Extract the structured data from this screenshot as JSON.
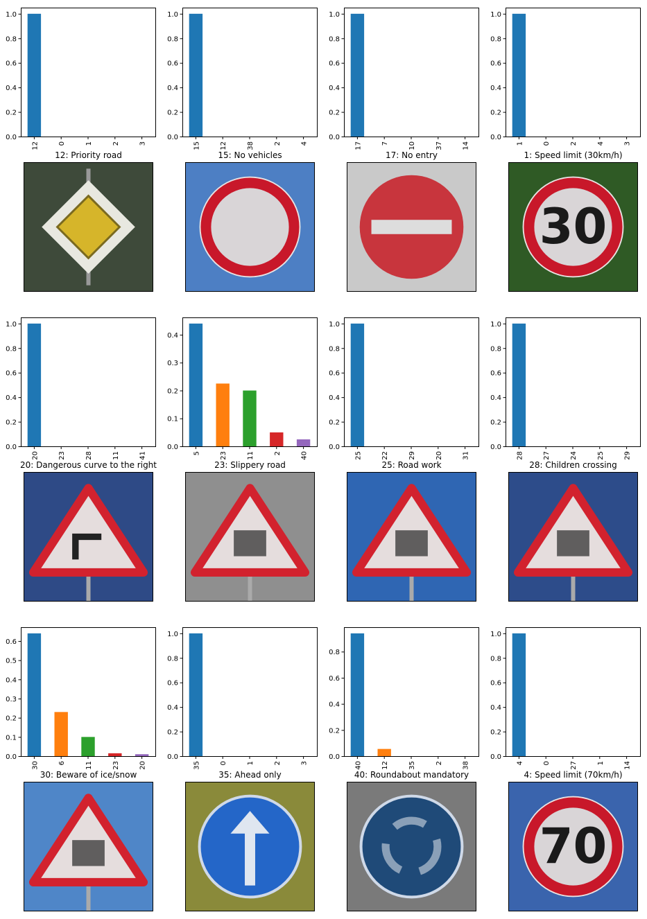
{
  "colors": {
    "bar_palette": [
      "#1f77b4",
      "#ff7f0e",
      "#2ca02c",
      "#d62728",
      "#9467bd"
    ],
    "background": "#ffffff",
    "axes_edge": "#000000"
  },
  "chart_data": [
    {
      "type": "bar",
      "title": "",
      "categories": [
        "12",
        "0",
        "1",
        "2",
        "3"
      ],
      "values": [
        1.0,
        0,
        0,
        0,
        0
      ],
      "ylim": [
        0,
        1.05
      ],
      "yticks": [
        "0.0",
        "0.2",
        "0.4",
        "0.6",
        "0.8",
        "1.0"
      ],
      "grid": false,
      "legend": "none",
      "image": {
        "title": "12: Priority road",
        "sign": "priority",
        "bg": "#3e4a3a"
      }
    },
    {
      "type": "bar",
      "title": "",
      "categories": [
        "15",
        "12",
        "38",
        "2",
        "4"
      ],
      "values": [
        1.0,
        0,
        0,
        0,
        0
      ],
      "ylim": [
        0,
        1.05
      ],
      "yticks": [
        "0.0",
        "0.2",
        "0.4",
        "0.6",
        "0.8",
        "1.0"
      ],
      "grid": false,
      "legend": "none",
      "image": {
        "title": "15: No vehicles",
        "sign": "no-vehicles",
        "bg": "#4d7fc4"
      }
    },
    {
      "type": "bar",
      "title": "",
      "categories": [
        "17",
        "7",
        "10",
        "37",
        "14"
      ],
      "values": [
        1.0,
        0,
        0,
        0,
        0
      ],
      "ylim": [
        0,
        1.05
      ],
      "yticks": [
        "0.0",
        "0.2",
        "0.4",
        "0.6",
        "0.8",
        "1.0"
      ],
      "grid": false,
      "legend": "none",
      "image": {
        "title": "17: No entry",
        "sign": "no-entry",
        "bg": "#c9c9c9"
      }
    },
    {
      "type": "bar",
      "title": "",
      "categories": [
        "1",
        "0",
        "2",
        "4",
        "3"
      ],
      "values": [
        1.0,
        0,
        0,
        0,
        0
      ],
      "ylim": [
        0,
        1.05
      ],
      "yticks": [
        "0.0",
        "0.2",
        "0.4",
        "0.6",
        "0.8",
        "1.0"
      ],
      "grid": false,
      "legend": "none",
      "image": {
        "title": "1: Speed limit (30km/h)",
        "sign": "speed",
        "text": "30",
        "bg": "#2f5a25"
      }
    },
    {
      "type": "bar",
      "title": "",
      "categories": [
        "20",
        "23",
        "28",
        "11",
        "41"
      ],
      "values": [
        1.0,
        0,
        0,
        0,
        0
      ],
      "ylim": [
        0,
        1.05
      ],
      "yticks": [
        "0.0",
        "0.2",
        "0.4",
        "0.6",
        "0.8",
        "1.0"
      ],
      "grid": false,
      "legend": "none",
      "image": {
        "title": "20: Dangerous curve to the right",
        "sign": "curve",
        "bg": "#2e4a86"
      }
    },
    {
      "type": "bar",
      "title": "",
      "categories": [
        "5",
        "23",
        "11",
        "2",
        "40"
      ],
      "values": [
        0.44,
        0.225,
        0.2,
        0.05,
        0.025
      ],
      "ylim": [
        0,
        0.462
      ],
      "yticks": [
        "0.0",
        "0.1",
        "0.2",
        "0.3",
        "0.4"
      ],
      "grid": false,
      "legend": "none",
      "image": {
        "title": "23: Slippery road",
        "sign": "slippery",
        "bg": "#8f8f8f"
      }
    },
    {
      "type": "bar",
      "title": "",
      "categories": [
        "25",
        "22",
        "29",
        "20",
        "31"
      ],
      "values": [
        1.0,
        0,
        0,
        0,
        0
      ],
      "ylim": [
        0,
        1.05
      ],
      "yticks": [
        "0.0",
        "0.2",
        "0.4",
        "0.6",
        "0.8",
        "1.0"
      ],
      "grid": false,
      "legend": "none",
      "image": {
        "title": "25: Road work",
        "sign": "roadwork",
        "bg": "#2f66b3"
      }
    },
    {
      "type": "bar",
      "title": "",
      "categories": [
        "28",
        "27",
        "24",
        "25",
        "29"
      ],
      "values": [
        1.0,
        0,
        0,
        0,
        0
      ],
      "ylim": [
        0,
        1.05
      ],
      "yticks": [
        "0.0",
        "0.2",
        "0.4",
        "0.6",
        "0.8",
        "1.0"
      ],
      "grid": false,
      "legend": "none",
      "image": {
        "title": "28: Children crossing",
        "sign": "children",
        "bg": "#2d4c8a"
      }
    },
    {
      "type": "bar",
      "title": "",
      "categories": [
        "30",
        "6",
        "11",
        "23",
        "20"
      ],
      "values": [
        0.64,
        0.23,
        0.1,
        0.015,
        0.01
      ],
      "ylim": [
        0,
        0.672
      ],
      "yticks": [
        "0.0",
        "0.1",
        "0.2",
        "0.3",
        "0.4",
        "0.5",
        "0.6"
      ],
      "grid": false,
      "legend": "none",
      "image": {
        "title": "30: Beware of ice/snow",
        "sign": "ice",
        "bg": "#4f86c8"
      }
    },
    {
      "type": "bar",
      "title": "",
      "categories": [
        "35",
        "0",
        "1",
        "2",
        "3"
      ],
      "values": [
        1.0,
        0,
        0,
        0,
        0
      ],
      "ylim": [
        0,
        1.05
      ],
      "yticks": [
        "0.0",
        "0.2",
        "0.4",
        "0.6",
        "0.8",
        "1.0"
      ],
      "grid": false,
      "legend": "none",
      "image": {
        "title": "35: Ahead only",
        "sign": "ahead",
        "bg": "#8a8a3a"
      }
    },
    {
      "type": "bar",
      "title": "",
      "categories": [
        "40",
        "12",
        "35",
        "2",
        "38"
      ],
      "values": [
        0.94,
        0.055,
        0,
        0,
        0
      ],
      "ylim": [
        0,
        0.987
      ],
      "yticks": [
        "0.0",
        "0.2",
        "0.4",
        "0.6",
        "0.8"
      ],
      "grid": false,
      "legend": "none",
      "image": {
        "title": "40: Roundabout mandatory",
        "sign": "roundabout",
        "bg": "#7a7a7a"
      }
    },
    {
      "type": "bar",
      "title": "",
      "categories": [
        "4",
        "0",
        "27",
        "1",
        "14"
      ],
      "values": [
        1.0,
        0,
        0,
        0,
        0
      ],
      "ylim": [
        0,
        1.05
      ],
      "yticks": [
        "0.0",
        "0.2",
        "0.4",
        "0.6",
        "0.8",
        "1.0"
      ],
      "grid": false,
      "legend": "none",
      "image": {
        "title": "4: Speed limit (70km/h)",
        "sign": "speed",
        "text": "70",
        "bg": "#3a64ad"
      }
    }
  ]
}
